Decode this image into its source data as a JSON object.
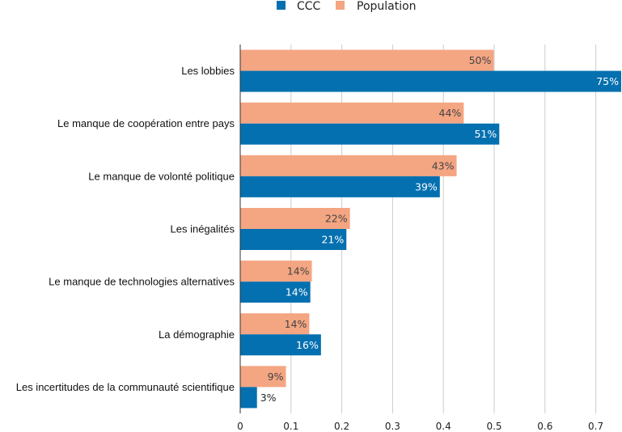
{
  "chart_data": {
    "type": "bar",
    "orientation": "horizontal",
    "categories": [
      "Les lobbies",
      "Le manque de coopération entre pays",
      "Le manque de volonté politique",
      "Les inégalités",
      "Le manque de technologies alternatives",
      "La démographie",
      "Les incertitudes de la communauté scientifique"
    ],
    "series": [
      {
        "name": "CCC",
        "color": "#0570b0",
        "values": [
          0.75,
          0.51,
          0.393,
          0.209,
          0.138,
          0.159,
          0.033
        ],
        "labels": [
          "75%",
          "51%",
          "39%",
          "21%",
          "14%",
          "16%",
          "3%"
        ]
      },
      {
        "name": "Population",
        "color": "#f4a582",
        "values": [
          0.499,
          0.44,
          0.426,
          0.216,
          0.141,
          0.136,
          0.09
        ],
        "labels": [
          "50%",
          "44%",
          "43%",
          "22%",
          "14%",
          "14%",
          "9%"
        ]
      }
    ],
    "xlim": [
      0,
      0.75
    ],
    "xticks": [
      0,
      0.1,
      0.2,
      0.3,
      0.4,
      0.5,
      0.6,
      0.7
    ],
    "xtick_labels": [
      "0",
      "0.1",
      "0.2",
      "0.3",
      "0.4",
      "0.5",
      "0.6",
      "0.7"
    ],
    "grid": true,
    "legend": "top-center",
    "title": "",
    "xlabel": "",
    "ylabel": ""
  }
}
